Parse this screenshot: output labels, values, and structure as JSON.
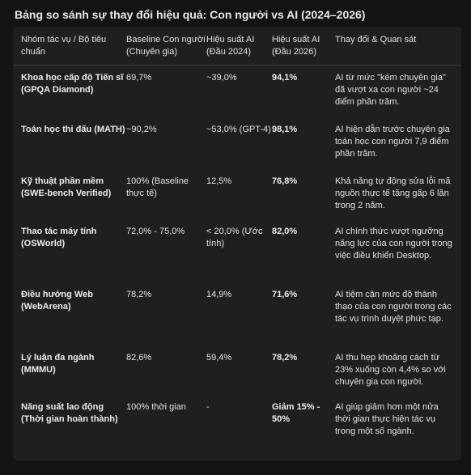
{
  "title": "Bảng so sánh sự thay đổi hiệu quả: Con người vs AI (2024–2026)",
  "columns": [
    "Nhóm tác vụ / Bộ tiêu chuẩn",
    "Baseline Con người (Chuyên gia)",
    "Hiệu suất AI (Đầu 2024)",
    "Hiệu suất AI (Đầu 2026)",
    "Thay đổi & Quan sát"
  ],
  "rows": [
    {
      "task": "Khoa học cấp độ Tiến sĩ (GPQA Diamond)",
      "baseline": "69,7%",
      "ai2024": "~39,0%",
      "ai2026": "94,1%",
      "note": "AI từ mức \"kém chuyên gia\" đã vượt xa con người ~24 điểm phần trăm."
    },
    {
      "task": "Toán học thi đấu (MATH)",
      "baseline": "~90,2%",
      "ai2024": "~53,0% (GPT-4)",
      "ai2026": "98,1%",
      "note": "AI hiện dẫn trước chuyên gia toán học con người 7,9 điểm phần trăm."
    },
    {
      "task": "Kỹ thuật phần mềm (SWE-bench Verified)",
      "baseline": "100% (Baseline thực tế)",
      "ai2024": "12,5%",
      "ai2026": "76,8%",
      "note": "Khả năng tự động sửa lỗi mã nguồn thực tế tăng gấp 6 lần trong 2 năm."
    },
    {
      "task": "Thao tác máy tính (OSWorld)",
      "baseline": "72,0% - 75,0%",
      "ai2024": "< 20,0% (Ước tính)",
      "ai2026": "82,0%",
      "note": "AI chính thức vượt ngưỡng năng lực của con người trong việc điều khiển Desktop."
    },
    {
      "task": "Điều hướng Web (WebArena)",
      "baseline": "78,2%",
      "ai2024": "14,9%",
      "ai2026": "71,6%",
      "note": "AI tiệm cận mức độ thành thạo của con người trong các tác vụ trình duyệt phức tạp."
    },
    {
      "task": "Lý luận đa ngành (MMMU)",
      "baseline": "82,6%",
      "ai2024": "59,4%",
      "ai2026": "78,2%",
      "note": "AI thu hẹp khoảng cách từ 23% xuống còn 4,4% so với chuyên gia con người."
    },
    {
      "task": "Năng suất lao động (Thời gian hoàn thành)",
      "baseline": "100% thời gian",
      "ai2024": "-",
      "ai2026": "Giảm 15% - 50%",
      "note": "AI giúp giảm hơn một nửa thời gian thực hiện tác vụ trong một số ngành."
    }
  ]
}
